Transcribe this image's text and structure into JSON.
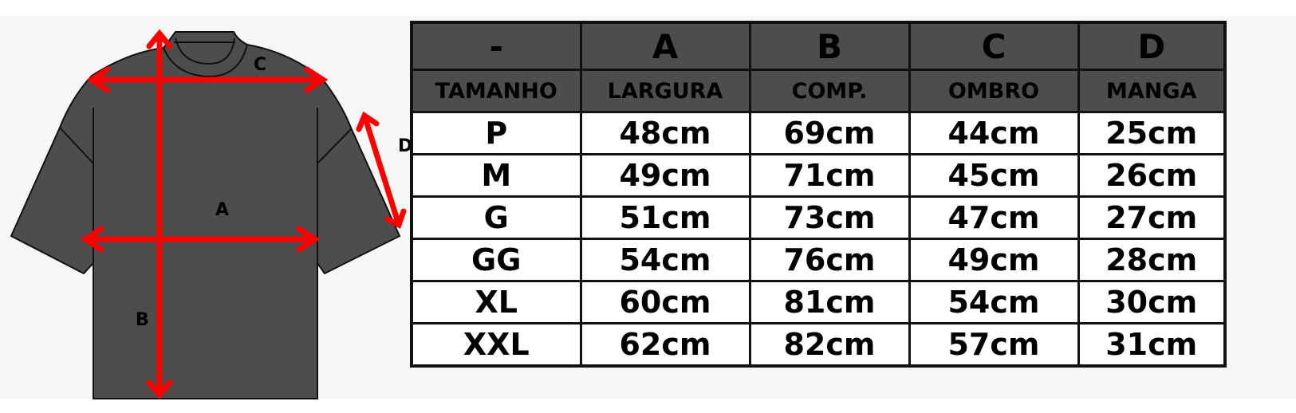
{
  "diagram": {
    "labels": {
      "a": "A",
      "b": "B",
      "c": "C",
      "d": "D"
    },
    "arrow_color": "#ff0000",
    "shirt_color": "#4d4d4d"
  },
  "table": {
    "letters": [
      "-",
      "A",
      "B",
      "C",
      "D"
    ],
    "headers": [
      "TAMANHO",
      "LARGURA",
      "COMP.",
      "OMBRO",
      "MANGA"
    ],
    "rows": [
      [
        "P",
        "48cm",
        "69cm",
        "44cm",
        "25cm"
      ],
      [
        "M",
        "49cm",
        "71cm",
        "45cm",
        "26cm"
      ],
      [
        "G",
        "51cm",
        "73cm",
        "47cm",
        "27cm"
      ],
      [
        "GG",
        "54cm",
        "76cm",
        "49cm",
        "28cm"
      ],
      [
        "XL",
        "60cm",
        "81cm",
        "54cm",
        "30cm"
      ],
      [
        "XXL",
        "62cm",
        "82cm",
        "57cm",
        "31cm"
      ]
    ],
    "header_bg": "#4d4d4d"
  }
}
